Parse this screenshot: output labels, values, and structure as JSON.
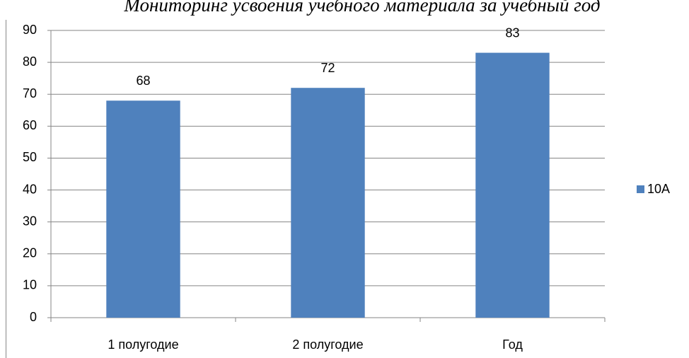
{
  "chart_data": {
    "type": "bar",
    "title": "Мониторинг усвоения учебного материала  за учебный год",
    "categories": [
      "1 полугодие",
      "2 полугодие",
      "Год"
    ],
    "series": [
      {
        "name": "10А",
        "color": "#4f81bd",
        "values": [
          68,
          72,
          83
        ]
      }
    ],
    "ylim": [
      0,
      90
    ],
    "yticks": [
      0,
      10,
      20,
      30,
      40,
      50,
      60,
      70,
      80,
      90
    ],
    "grid": true,
    "legend": "right",
    "data_labels": true
  }
}
